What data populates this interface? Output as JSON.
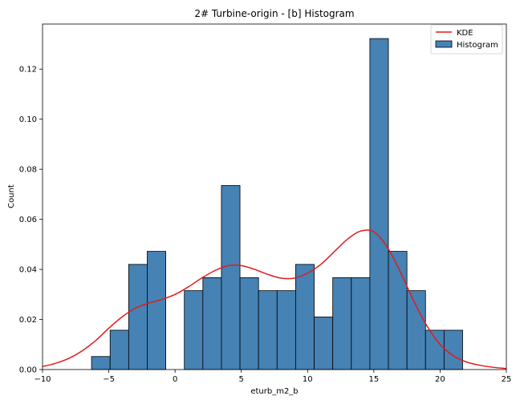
{
  "chart_data": {
    "type": "bar",
    "title": "2# Turbine-origin - [b] Histogram",
    "xlabel": "eturb_m2_b",
    "ylabel": "Count",
    "xlim": [
      -10,
      25
    ],
    "ylim": [
      0,
      0.138
    ],
    "xticks": [
      -10,
      -5,
      0,
      5,
      10,
      15,
      20,
      25
    ],
    "xtick_labels": [
      "−10",
      "−5",
      "0",
      "5",
      "10",
      "15",
      "20",
      "25"
    ],
    "yticks": [
      0.0,
      0.02,
      0.04,
      0.06,
      0.08,
      0.1,
      0.12
    ],
    "ytick_labels": [
      "0.00",
      "0.02",
      "0.04",
      "0.06",
      "0.08",
      "0.10",
      "0.12"
    ],
    "grid": false,
    "legend": {
      "position": "top-right",
      "entries": [
        "KDE",
        "Histogram"
      ]
    },
    "colors": {
      "bar_fill": "#4682b4",
      "bar_edge": "#000000",
      "kde_line": "#e31a1c"
    },
    "histogram": {
      "name": "Histogram",
      "bins": [
        {
          "x0": -6.3,
          "x1": -4.9,
          "value": 0.0052
        },
        {
          "x0": -4.9,
          "x1": -3.5,
          "value": 0.0157
        },
        {
          "x0": -3.5,
          "x1": -2.1,
          "value": 0.042
        },
        {
          "x0": -2.1,
          "x1": -0.7,
          "value": 0.0472
        },
        {
          "x0": -0.7,
          "x1": 0.7,
          "value": 0.0
        },
        {
          "x0": 0.7,
          "x1": 2.1,
          "value": 0.0315
        },
        {
          "x0": 2.1,
          "x1": 3.5,
          "value": 0.0367
        },
        {
          "x0": 3.5,
          "x1": 4.9,
          "value": 0.0735
        },
        {
          "x0": 4.9,
          "x1": 6.3,
          "value": 0.0367
        },
        {
          "x0": 6.3,
          "x1": 7.7,
          "value": 0.0315
        },
        {
          "x0": 7.7,
          "x1": 9.1,
          "value": 0.0315
        },
        {
          "x0": 9.1,
          "x1": 10.5,
          "value": 0.042
        },
        {
          "x0": 10.5,
          "x1": 11.9,
          "value": 0.021
        },
        {
          "x0": 11.9,
          "x1": 13.3,
          "value": 0.0367
        },
        {
          "x0": 13.3,
          "x1": 14.7,
          "value": 0.0367
        },
        {
          "x0": 14.7,
          "x1": 16.1,
          "value": 0.1322
        },
        {
          "x0": 16.1,
          "x1": 17.5,
          "value": 0.0472
        },
        {
          "x0": 17.5,
          "x1": 18.9,
          "value": 0.0315
        },
        {
          "x0": 18.9,
          "x1": 20.3,
          "value": 0.0157
        },
        {
          "x0": 20.3,
          "x1": 21.7,
          "value": 0.0157
        }
      ]
    },
    "kde": {
      "name": "KDE",
      "x": [
        -10,
        -9,
        -8,
        -7,
        -6,
        -5,
        -4,
        -3,
        -2,
        -1,
        0,
        1,
        2,
        3,
        4,
        5,
        6,
        7,
        8,
        9,
        10,
        11,
        12,
        13,
        14,
        15,
        16,
        17,
        18,
        19,
        20,
        21,
        22,
        23,
        24,
        25
      ],
      "y": [
        0.0012,
        0.0025,
        0.0045,
        0.0075,
        0.0115,
        0.0165,
        0.021,
        0.0245,
        0.0265,
        0.028,
        0.03,
        0.033,
        0.0365,
        0.0395,
        0.0415,
        0.0415,
        0.04,
        0.038,
        0.0365,
        0.0365,
        0.0385,
        0.042,
        0.047,
        0.052,
        0.0553,
        0.055,
        0.049,
        0.039,
        0.0275,
        0.0175,
        0.01,
        0.0055,
        0.003,
        0.0017,
        0.0009,
        0.0004
      ]
    }
  }
}
